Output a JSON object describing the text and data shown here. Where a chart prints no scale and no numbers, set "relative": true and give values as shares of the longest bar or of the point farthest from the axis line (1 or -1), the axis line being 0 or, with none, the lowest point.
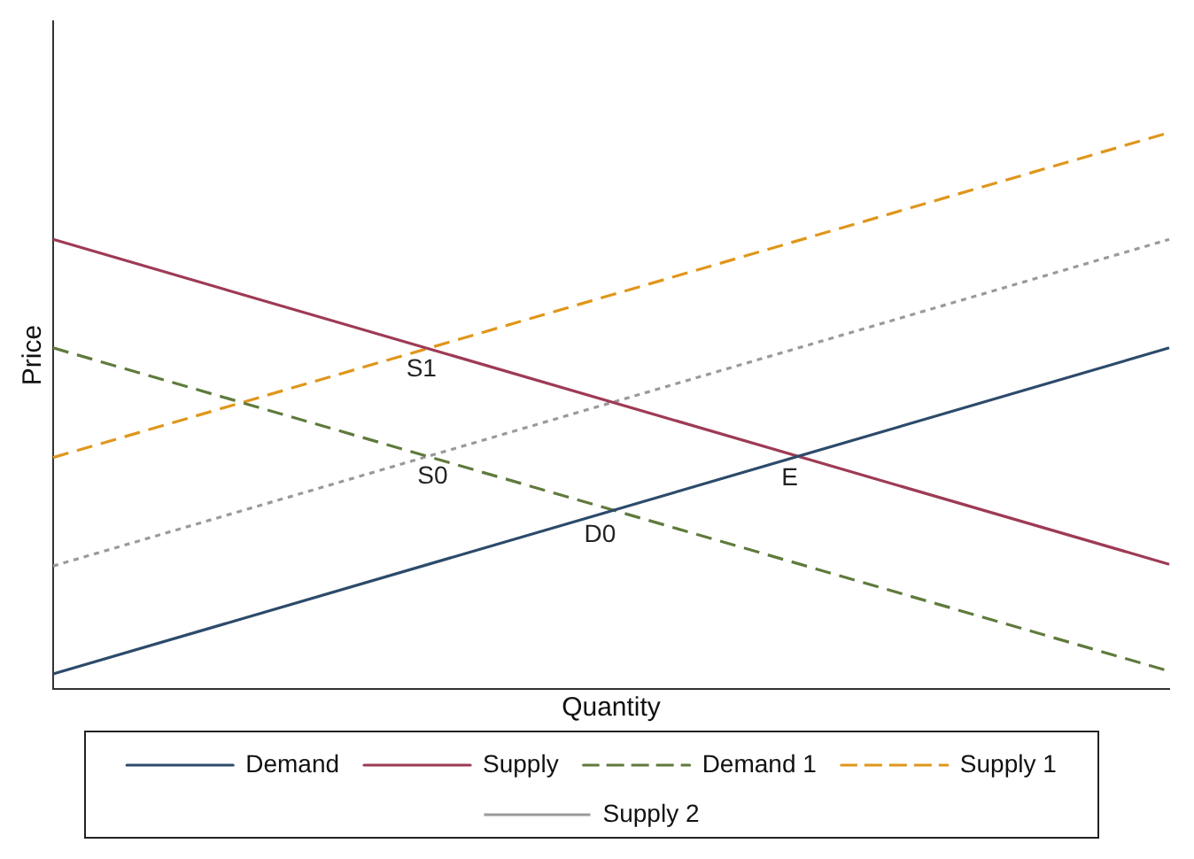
{
  "chart_data": {
    "type": "line",
    "relative": true,
    "xlabel": "Quantity",
    "ylabel": "Price",
    "categories": [
      null,
      null
    ],
    "series": [
      {
        "name": "Demand",
        "color": "#2c4a6b",
        "values": [
          0.027,
          0.613
        ],
        "line_style": "solid"
      },
      {
        "name": "Supply",
        "color": "#9e3a55",
        "values": [
          0.808,
          0.224
        ],
        "line_style": "solid"
      },
      {
        "name": "Demand 1",
        "color": "#5f7a3c",
        "values": [
          0.613,
          0.032
        ],
        "line_style": "dashed"
      },
      {
        "name": "Supply 1",
        "color": "#e0961a",
        "values": [
          0.416,
          1
        ],
        "line_style": "dashed"
      },
      {
        "name": "Supply 2",
        "color": "#9a9a9a",
        "values": [
          0.221,
          0.808
        ],
        "line_style": "dotted"
      }
    ],
    "annotations": [
      {
        "text": "S1",
        "y": 0.613
      },
      {
        "text": "S0",
        "y": 0.419
      },
      {
        "text": "D0",
        "y": 0.315
      },
      {
        "text": "E",
        "y": 0.416
      }
    ],
    "grid": false,
    "legend": "bottom",
    "marker": "none"
  }
}
